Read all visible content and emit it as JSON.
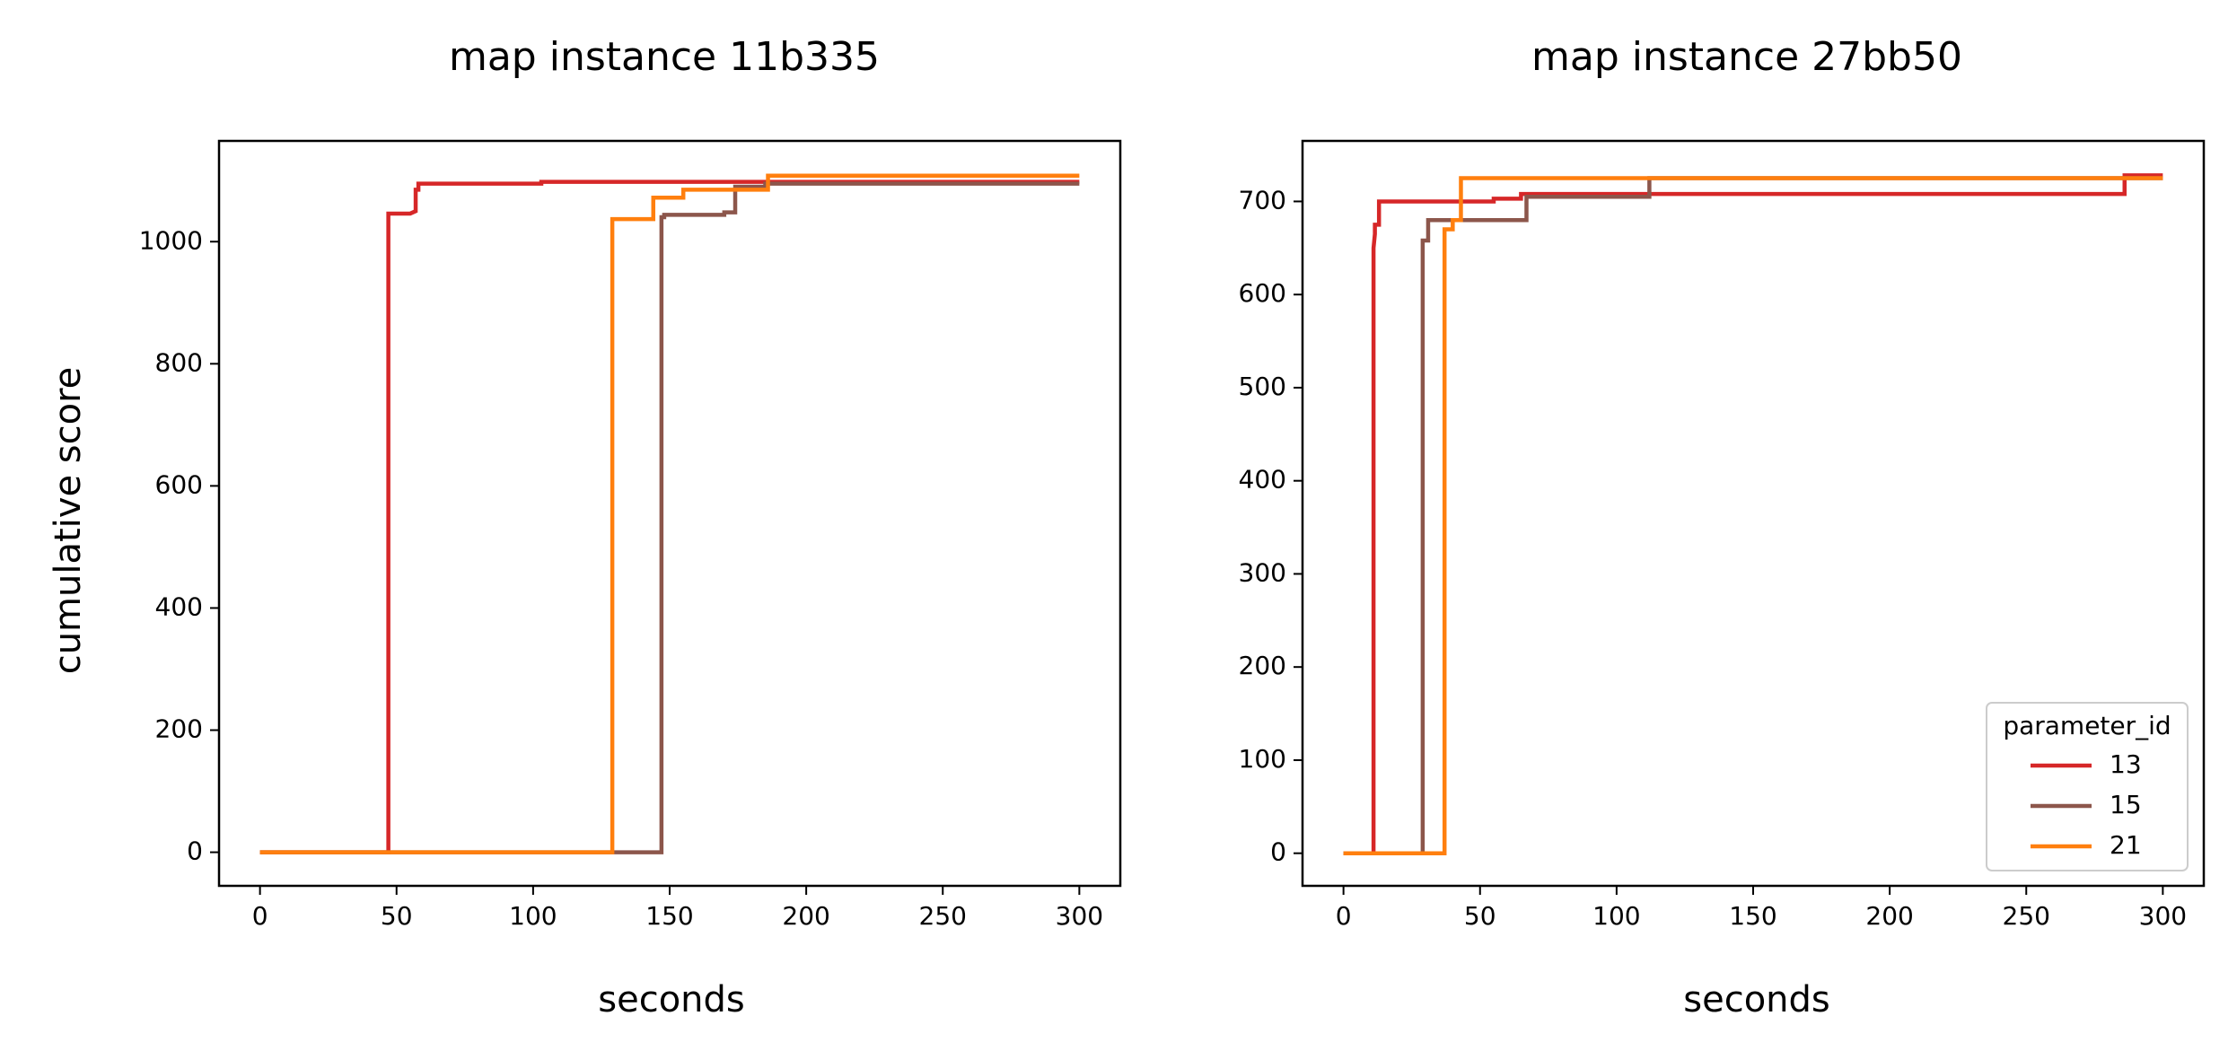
{
  "figure": {
    "ylabel": "cumulative score"
  },
  "chart_data": [
    {
      "type": "line",
      "step": true,
      "title": "map instance 11b335",
      "xlabel": "seconds",
      "ylabel": "cumulative score",
      "xlim": [
        -15,
        315
      ],
      "ylim": [
        -55,
        1165
      ],
      "xticks": [
        0,
        50,
        100,
        150,
        200,
        250,
        300
      ],
      "yticks": [
        0,
        200,
        400,
        600,
        800,
        1000
      ],
      "grid": false,
      "legend": null,
      "series": [
        {
          "name": "13",
          "color": "#d62728",
          "points": [
            [
              0,
              0
            ],
            [
              47,
              0
            ],
            [
              47,
              1046
            ],
            [
              55,
              1046
            ],
            [
              57,
              1050
            ],
            [
              57,
              1085
            ],
            [
              58,
              1085
            ],
            [
              58,
              1095
            ],
            [
              103,
              1095
            ],
            [
              103,
              1098
            ],
            [
              300,
              1098
            ]
          ]
        },
        {
          "name": "15",
          "color": "#8c564b",
          "points": [
            [
              0,
              0
            ],
            [
              147,
              0
            ],
            [
              147,
              1040
            ],
            [
              148,
              1040
            ],
            [
              148,
              1044
            ],
            [
              170,
              1044
            ],
            [
              170,
              1048
            ],
            [
              174,
              1048
            ],
            [
              174,
              1090
            ],
            [
              185,
              1090
            ],
            [
              185,
              1095
            ],
            [
              300,
              1095
            ]
          ]
        },
        {
          "name": "21",
          "color": "#ff7f0e",
          "points": [
            [
              0,
              0
            ],
            [
              129,
              0
            ],
            [
              129,
              1037
            ],
            [
              144,
              1037
            ],
            [
              144,
              1072
            ],
            [
              155,
              1072
            ],
            [
              155,
              1085
            ],
            [
              186,
              1085
            ],
            [
              186,
              1108
            ],
            [
              300,
              1108
            ]
          ]
        }
      ]
    },
    {
      "type": "line",
      "step": true,
      "title": "map instance 27bb50",
      "xlabel": "seconds",
      "ylabel": "",
      "xlim": [
        -15,
        315
      ],
      "ylim": [
        -35,
        765
      ],
      "xticks": [
        0,
        50,
        100,
        150,
        200,
        250,
        300
      ],
      "yticks": [
        0,
        100,
        200,
        300,
        400,
        500,
        600,
        700
      ],
      "grid": false,
      "legend": {
        "title": "parameter_id",
        "position": "lower-right"
      },
      "series": [
        {
          "name": "13",
          "color": "#d62728",
          "points": [
            [
              0,
              0
            ],
            [
              11,
              0
            ],
            [
              11,
              650
            ],
            [
              11.5,
              665
            ],
            [
              11.5,
              675
            ],
            [
              13,
              675
            ],
            [
              13,
              700
            ],
            [
              55,
              700
            ],
            [
              55,
              703
            ],
            [
              65,
              703
            ],
            [
              65,
              708
            ],
            [
              286,
              708
            ],
            [
              286,
              728
            ],
            [
              300,
              728
            ]
          ]
        },
        {
          "name": "15",
          "color": "#8c564b",
          "points": [
            [
              0,
              0
            ],
            [
              29,
              0
            ],
            [
              29,
              658
            ],
            [
              31,
              658
            ],
            [
              31,
              680
            ],
            [
              67,
              680
            ],
            [
              67,
              705
            ],
            [
              112,
              705
            ],
            [
              112,
              725
            ],
            [
              300,
              725
            ]
          ]
        },
        {
          "name": "21",
          "color": "#ff7f0e",
          "points": [
            [
              0,
              0
            ],
            [
              37,
              0
            ],
            [
              37,
              670
            ],
            [
              40,
              670
            ],
            [
              40,
              680
            ],
            [
              43,
              680
            ],
            [
              43,
              725
            ],
            [
              300,
              725
            ]
          ]
        }
      ]
    }
  ]
}
